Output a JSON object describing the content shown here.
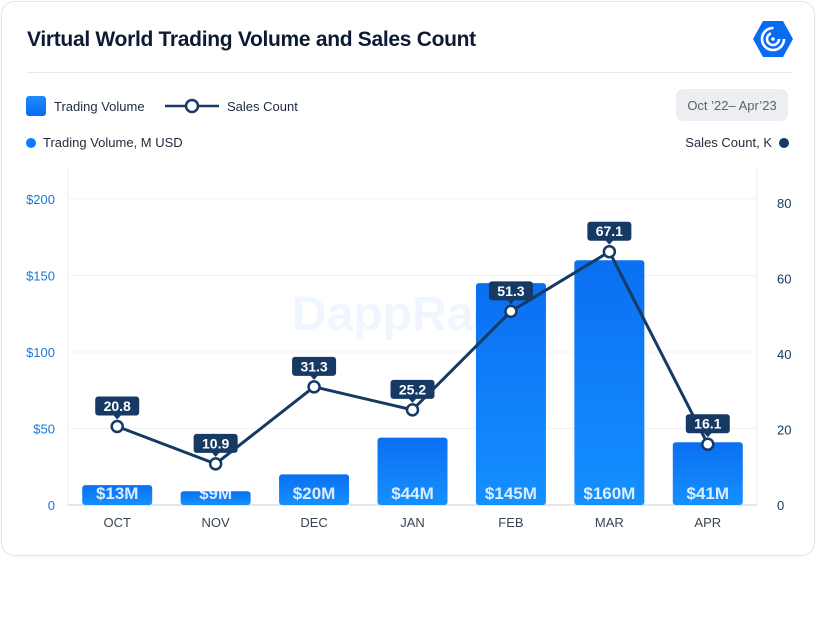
{
  "title": "Virtual World Trading Volume and Sales Count",
  "logo": {
    "name": "DappRadar",
    "color": "#0a6bf0"
  },
  "watermark": "DappRadar",
  "legend": {
    "bars": "Trading Volume",
    "line": "Sales Count"
  },
  "date_range": "Oct ’22– Apr’23",
  "left_axis_title": "Trading Volume, M USD",
  "right_axis_title": "Sales Count, K",
  "colors": {
    "bar": "#0a7cff",
    "line": "#163a63",
    "left_axis": "#1b78d8",
    "right_axis": "#163a63"
  },
  "chart_data": {
    "type": "bar+line",
    "title": "Virtual World Trading Volume and Sales Count",
    "categories": [
      "OCT",
      "NOV",
      "DEC",
      "JAN",
      "FEB",
      "MAR",
      "APR"
    ],
    "series": [
      {
        "name": "Trading Volume",
        "type": "bar",
        "axis": "left",
        "values": [
          13,
          9,
          20,
          44,
          145,
          160,
          41
        ],
        "labels": [
          "$13M",
          "$9M",
          "$20M",
          "$44M",
          "$145M",
          "$160M",
          "$41M"
        ]
      },
      {
        "name": "Sales Count",
        "type": "line",
        "axis": "right",
        "values": [
          20.8,
          10.9,
          31.3,
          25.2,
          51.3,
          67.1,
          16.1
        ],
        "labels": [
          "20.8",
          "10.9",
          "31.3",
          "25.2",
          "51.3",
          "67.1",
          "16.1"
        ]
      }
    ],
    "left_axis": {
      "label": "Trading Volume, M USD",
      "range": [
        0,
        200
      ],
      "ticks": [
        0,
        50,
        100,
        150,
        200
      ],
      "tick_labels": [
        "0",
        "$50",
        "$100",
        "$150",
        "$200"
      ]
    },
    "right_axis": {
      "label": "Sales Count, K",
      "range": [
        0,
        80
      ],
      "ticks": [
        0,
        20,
        40,
        60,
        80
      ],
      "tick_labels": [
        "0",
        "20",
        "40",
        "60",
        "80"
      ]
    },
    "grid": true,
    "legend_position": "top-left"
  }
}
